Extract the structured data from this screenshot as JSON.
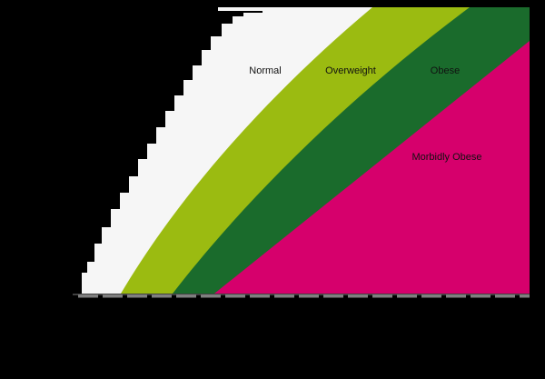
{
  "chart_data": {
    "type": "area",
    "title": "",
    "xlabel": "",
    "ylabel": "",
    "regions": [
      {
        "label": "Normal",
        "color": "#f6f6f6"
      },
      {
        "label": "Overweight",
        "color": "#9bbb11"
      },
      {
        "label": "Obese",
        "color": "#1a6b2c"
      },
      {
        "label": "Morbidly Obese",
        "color": "#d6006c"
      }
    ],
    "axis_color": "#7f7f7f",
    "grid": false
  }
}
